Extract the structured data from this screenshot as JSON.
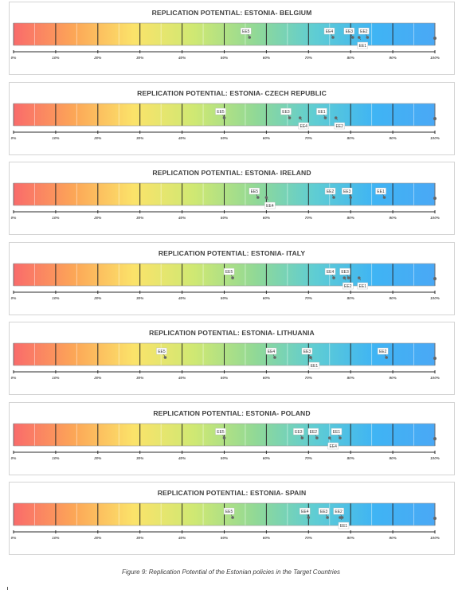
{
  "caption": "Figure 9: Replication Potential of the Estonian policies in the Target Countries",
  "scale": {
    "tick_labels": [
      "0%",
      "10%",
      "20%",
      "30%",
      "40%",
      "50%",
      "60%",
      "70%",
      "80%",
      "90%",
      "100%"
    ],
    "gradient_colors": [
      "#f96b6b",
      "#fca657",
      "#fbe36a",
      "#cfe873",
      "#92d995",
      "#5fcdd3",
      "#3fb4f4",
      "#4aa8f5"
    ]
  },
  "chart_data": [
    {
      "type": "scatter",
      "title": "REPLICATION POTENTIAL: ESTONIA- BELGIUM",
      "xlim": [
        0,
        100
      ],
      "points": [
        {
          "label": "EE5",
          "x": 56
        },
        {
          "label": "EE4",
          "x": 75.8
        },
        {
          "label": "EE3",
          "x": 80.5
        },
        {
          "label": "EE1",
          "x": 82
        },
        {
          "label": "EE2",
          "x": 84
        }
      ]
    },
    {
      "type": "scatter",
      "title": "REPLICATION POTENTIAL: ESTONIA- CZECH REPUBLIC",
      "xlim": [
        0,
        100
      ],
      "points": [
        {
          "label": "EE5",
          "x": 50
        },
        {
          "label": "EE3",
          "x": 65.5
        },
        {
          "label": "EE4",
          "x": 68
        },
        {
          "label": "EE1",
          "x": 74
        },
        {
          "label": "EE2",
          "x": 76.5
        }
      ]
    },
    {
      "type": "scatter",
      "title": "REPLICATION POTENTIAL: ESTONIA- IRELAND",
      "xlim": [
        0,
        100
      ],
      "points": [
        {
          "label": "EE5",
          "x": 58
        },
        {
          "label": "EE4",
          "x": 60
        },
        {
          "label": "EE2",
          "x": 76
        },
        {
          "label": "EE3",
          "x": 80
        },
        {
          "label": "EE1",
          "x": 88
        }
      ]
    },
    {
      "type": "scatter",
      "title": "REPLICATION POTENTIAL: ESTONIA- ITALY",
      "xlim": [
        0,
        100
      ],
      "points": [
        {
          "label": "EE5",
          "x": 52
        },
        {
          "label": "EE4",
          "x": 76
        },
        {
          "label": "EE3",
          "x": 79.5
        },
        {
          "label": "EE2",
          "x": 78.5
        },
        {
          "label": "EE1",
          "x": 82
        }
      ]
    },
    {
      "type": "scatter",
      "title": "REPLICATION POTENTIAL: ESTONIA- LITHUANIA",
      "xlim": [
        0,
        100
      ],
      "points": [
        {
          "label": "EE5",
          "x": 36
        },
        {
          "label": "EE4",
          "x": 62
        },
        {
          "label": "EE3",
          "x": 70.5
        },
        {
          "label": "EE1",
          "x": 70.5
        },
        {
          "label": "EE2",
          "x": 88.5
        }
      ]
    },
    {
      "type": "scatter",
      "title": "REPLICATION POTENTIAL: ESTONIA- POLAND",
      "xlim": [
        0,
        100
      ],
      "points": [
        {
          "label": "EE5",
          "x": 50
        },
        {
          "label": "EE3",
          "x": 68.5
        },
        {
          "label": "EE2",
          "x": 72
        },
        {
          "label": "EE4",
          "x": 75
        },
        {
          "label": "EE1",
          "x": 77.5
        }
      ]
    },
    {
      "type": "scatter",
      "title": "REPLICATION POTENTIAL: ESTONIA- SPAIN",
      "xlim": [
        0,
        100
      ],
      "points": [
        {
          "label": "EE5",
          "x": 52
        },
        {
          "label": "EE4",
          "x": 70
        },
        {
          "label": "EE3",
          "x": 74.5
        },
        {
          "label": "EE2",
          "x": 78
        },
        {
          "label": "EE1",
          "x": 77.5
        }
      ]
    }
  ]
}
